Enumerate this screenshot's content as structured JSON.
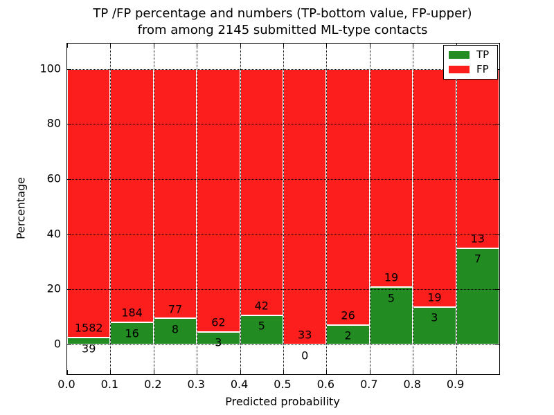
{
  "title": {
    "line1": "TP /FP percentage and numbers (TP-bottom value, FP-upper)",
    "line2": "from among 2145 submitted ML-type contacts"
  },
  "axes": {
    "xlabel": "Predicted probability",
    "ylabel": "Percentage"
  },
  "legend": {
    "items": [
      {
        "label": "TP",
        "color": "#228b22"
      },
      {
        "label": "FP",
        "color": "#fc1d1d"
      }
    ],
    "position": "upper right"
  },
  "chart_data": {
    "type": "bar",
    "stacked": true,
    "normalized_to_percent": true,
    "title": "TP /FP percentage and numbers (TP-bottom value, FP-upper)\nfrom among 2145 submitted ML-type contacts",
    "xlabel": "Predicted probability",
    "ylabel": "Percentage",
    "total_contacts": 2145,
    "bin_width": 0.1,
    "bin_starts": [
      0.0,
      0.1,
      0.2,
      0.3,
      0.4,
      0.5,
      0.6,
      0.7,
      0.8,
      0.9
    ],
    "series": [
      {
        "name": "TP",
        "color": "#228b22",
        "counts": [
          39,
          16,
          8,
          3,
          5,
          0,
          2,
          5,
          3,
          7
        ],
        "percent": [
          2.41,
          8.0,
          9.41,
          4.62,
          10.64,
          0.0,
          7.14,
          20.83,
          13.64,
          35.0
        ]
      },
      {
        "name": "FP",
        "color": "#fc1d1d",
        "counts": [
          1582,
          184,
          77,
          62,
          42,
          33,
          26,
          19,
          19,
          13
        ],
        "percent": [
          97.59,
          92.0,
          90.59,
          95.38,
          89.36,
          100.0,
          92.86,
          79.17,
          86.36,
          65.0
        ]
      }
    ],
    "x_ticks": [
      "0.0",
      "0.1",
      "0.2",
      "0.3",
      "0.4",
      "0.5",
      "0.6",
      "0.7",
      "0.8",
      "0.9"
    ],
    "y_ticks": [
      0,
      20,
      40,
      60,
      80,
      100
    ],
    "xlim": [
      0.0,
      1.0
    ],
    "ylim": [
      -10.8,
      109.2
    ],
    "grid": "dotted",
    "grid_above_bars": true,
    "bar_edge_color": "#ffffff",
    "legend_position": "upper right"
  }
}
